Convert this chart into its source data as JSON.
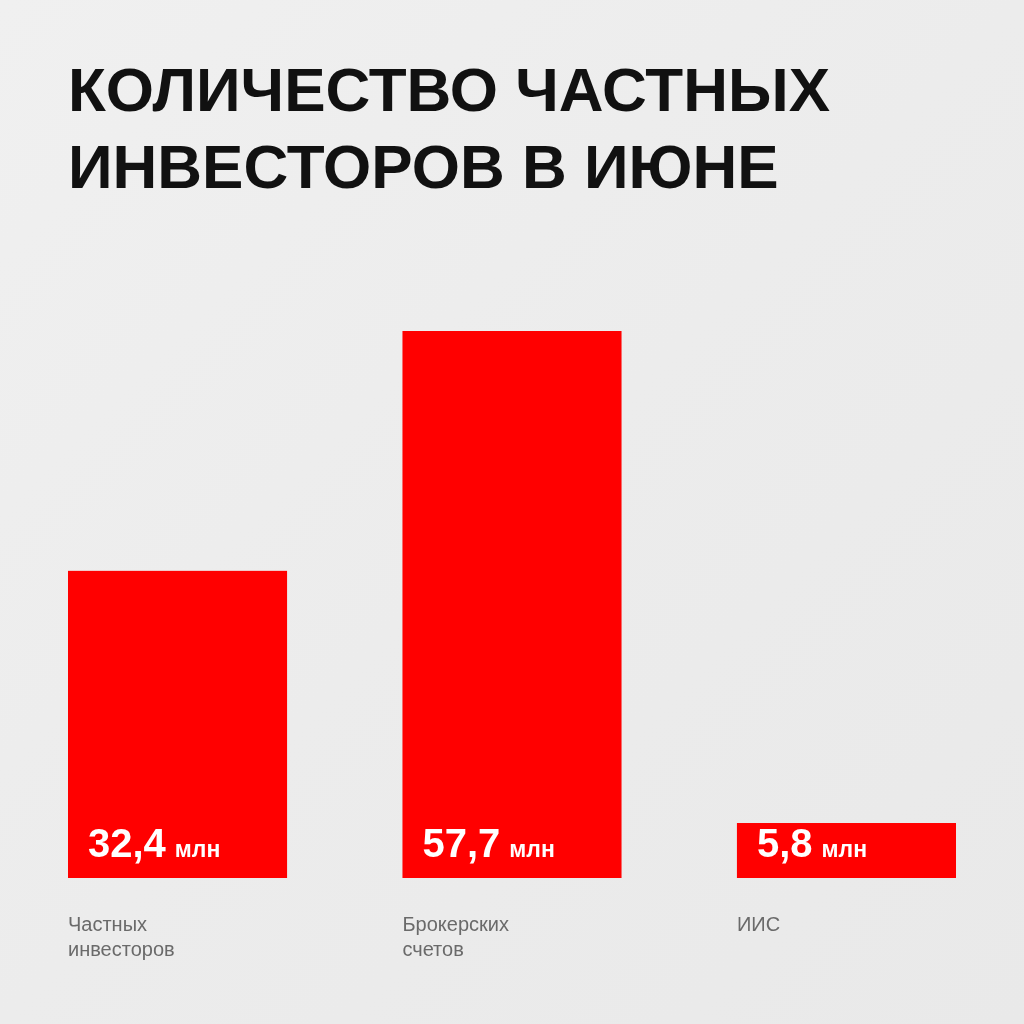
{
  "chart_data": {
    "type": "bar",
    "title": "КОЛИЧЕСТВО ЧАСТНЫХ ИНВЕСТОРОВ В ИЮНЕ",
    "categories": [
      "Частных инвесторов",
      "Брокерских счетов",
      "ИИС"
    ],
    "values": [
      32.4,
      57.7,
      5.8
    ],
    "color": "#ff0000",
    "value_labels": [
      "32,4 млн",
      "57,7 млн",
      "5,8 млн"
    ]
  }
}
